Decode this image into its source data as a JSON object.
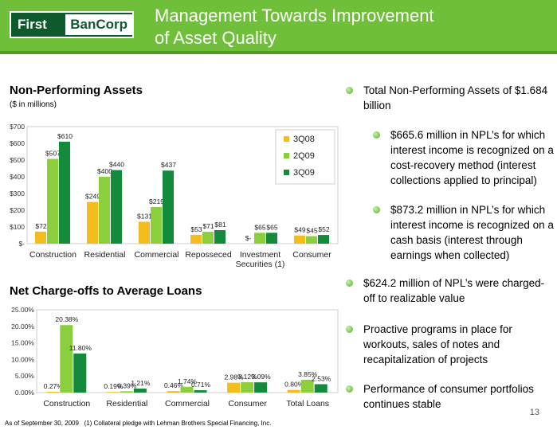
{
  "header": {
    "logo_first": "First",
    "logo_bancorp": "BanCorp",
    "title_line1": "Management Towards Improvement",
    "title_line2": "of Asset Quality",
    "brand_color": "#6fbf3a"
  },
  "npa_section": {
    "title": "Non-Performing Assets",
    "subtitle": "($ in millions)"
  },
  "nco_section": {
    "title": "Net Charge-offs to Average Loans"
  },
  "chart_data": [
    {
      "type": "bar",
      "title": "Non-Performing Assets",
      "ylabel": "($ in millions)",
      "categories": [
        "Construction",
        "Residential",
        "Commercial",
        "Reposseced",
        "Investment Securities",
        "Consumer"
      ],
      "category_labels": [
        [
          "Construction"
        ],
        [
          "Residential"
        ],
        [
          "Commercial"
        ],
        [
          "Reposseced"
        ],
        [
          "Investment",
          "Securities (1)"
        ],
        [
          "Consumer"
        ]
      ],
      "ylim": [
        0,
        700
      ],
      "yticks": [
        0,
        100,
        200,
        300,
        400,
        500,
        600,
        700
      ],
      "ytick_labels": [
        "$-",
        "$100",
        "$200",
        "$300",
        "$400",
        "$500",
        "$600",
        "$700"
      ],
      "legend_position": "top-right",
      "grid": false,
      "series": [
        {
          "name": "3Q08",
          "color": "#f5bc1e",
          "values": [
            72,
            249,
            131,
            53,
            0,
            49
          ],
          "labels": [
            "$72",
            "$249",
            "$131",
            "$53",
            "$-",
            "$49"
          ]
        },
        {
          "name": "2Q09",
          "color": "#8ccf3e",
          "values": [
            507,
            400,
            219,
            71,
            65,
            45
          ],
          "labels": [
            "$507",
            "$400",
            "$219",
            "$71",
            "$65",
            "$45"
          ]
        },
        {
          "name": "3Q09",
          "color": "#138a3c",
          "values": [
            610,
            440,
            437,
            81,
            65,
            52
          ],
          "labels": [
            "$610",
            "$440",
            "$437",
            "$81",
            "$65",
            "$52"
          ]
        }
      ]
    },
    {
      "type": "bar",
      "title": "Net Charge-offs to Average Loans",
      "categories": [
        "Construction",
        "Residential",
        "Commercial",
        "Consumer",
        "Total Loans"
      ],
      "ylim": [
        0,
        25
      ],
      "yticks": [
        0,
        5,
        10,
        15,
        20,
        25
      ],
      "ytick_labels": [
        "0.00%",
        "5.00%",
        "10.00%",
        "15.00%",
        "20.00%",
        "25.00%"
      ],
      "grid": false,
      "series": [
        {
          "color": "#f5bc1e",
          "values": [
            0.27,
            0.19,
            0.46,
            2.98,
            0.8
          ],
          "labels": [
            "0.27%",
            "0.19%",
            "0.46%",
            "2.98%",
            "0.80%"
          ]
        },
        {
          "color": "#8ccf3e",
          "values": [
            20.38,
            0.39,
            1.74,
            3.12,
            3.85
          ],
          "labels": [
            "20.38%",
            "0.39%",
            "1.74%",
            "3.12%",
            "3.85%"
          ]
        },
        {
          "color": "#138a3c",
          "values": [
            11.8,
            1.21,
            0.71,
            3.09,
            2.53
          ],
          "labels": [
            "11.80%",
            "1.21%",
            "0.71%",
            "3.09%",
            "2.53%"
          ]
        }
      ]
    }
  ],
  "bullets": [
    {
      "level": 1,
      "text": "Total Non-Performing Assets of $1.684 billion"
    },
    {
      "level": 2,
      "text": "$665.6 million in NPL’s for which interest income is recognized on a cost-recovery method (interest collections applied to principal)"
    },
    {
      "level": 2,
      "text": "$873.2 million in NPL’s for which interest income is recognized on a cash basis (interest through earnings when collected)"
    },
    {
      "level": 1,
      "text": "$624.2 million of NPL’s were charged-off to realizable value"
    },
    {
      "level": 1,
      "text": "Proactive programs in place for workouts, sales of notes and recapitalization of projects"
    },
    {
      "level": 1,
      "text": "Performance of consumer portfolios continues stable"
    }
  ],
  "footer": {
    "as_of": "As of September 30, 2009",
    "note": "(1) Collateral pledge with Lehman Brothers Special Financing, Inc.",
    "page_number": "13"
  }
}
